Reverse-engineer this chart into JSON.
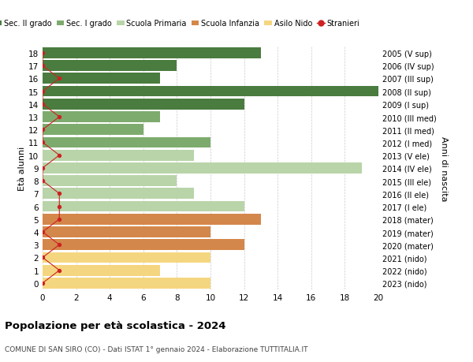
{
  "ages": [
    18,
    17,
    16,
    15,
    14,
    13,
    12,
    11,
    10,
    9,
    8,
    7,
    6,
    5,
    4,
    3,
    2,
    1,
    0
  ],
  "right_labels": [
    "2005 (V sup)",
    "2006 (IV sup)",
    "2007 (III sup)",
    "2008 (II sup)",
    "2009 (I sup)",
    "2010 (III med)",
    "2011 (II med)",
    "2012 (I med)",
    "2013 (V ele)",
    "2014 (IV ele)",
    "2015 (III ele)",
    "2016 (II ele)",
    "2017 (I ele)",
    "2018 (mater)",
    "2019 (mater)",
    "2020 (mater)",
    "2021 (nido)",
    "2022 (nido)",
    "2023 (nido)"
  ],
  "bar_values": [
    13,
    8,
    7,
    20,
    12,
    7,
    6,
    10,
    9,
    19,
    8,
    9,
    12,
    13,
    10,
    12,
    10,
    7,
    10
  ],
  "stranieri_values": [
    0,
    0,
    1,
    0,
    0,
    1,
    0,
    0,
    1,
    0,
    0,
    1,
    1,
    1,
    0,
    1,
    0,
    1,
    0
  ],
  "bar_colors": [
    "#4a7c3f",
    "#4a7c3f",
    "#4a7c3f",
    "#4a7c3f",
    "#4a7c3f",
    "#7dab6e",
    "#7dab6e",
    "#7dab6e",
    "#b8d4a8",
    "#b8d4a8",
    "#b8d4a8",
    "#b8d4a8",
    "#b8d4a8",
    "#d4874a",
    "#d4874a",
    "#d4874a",
    "#f5d680",
    "#f5d680",
    "#f5d680"
  ],
  "legend_labels": [
    "Sec. II grado",
    "Sec. I grado",
    "Scuola Primaria",
    "Scuola Infanzia",
    "Asilo Nido",
    "Stranieri"
  ],
  "legend_colors": [
    "#4a7c3f",
    "#7dab6e",
    "#b8d4a8",
    "#d4874a",
    "#f5d680",
    "#cc2222"
  ],
  "stranieri_color": "#cc2222",
  "ylabel_left": "Età alunni",
  "ylabel_right": "Anni di nascita",
  "title": "Popolazione per età scolastica - 2024",
  "subtitle": "COMUNE DI SAN SIRO (CO) - Dati ISTAT 1° gennaio 2024 - Elaborazione TUTTITALIA.IT",
  "xlim": [
    0,
    20
  ],
  "xticks": [
    0,
    2,
    4,
    6,
    8,
    10,
    12,
    14,
    16,
    18,
    20
  ],
  "bg_color": "#ffffff",
  "grid_color": "#cccccc"
}
